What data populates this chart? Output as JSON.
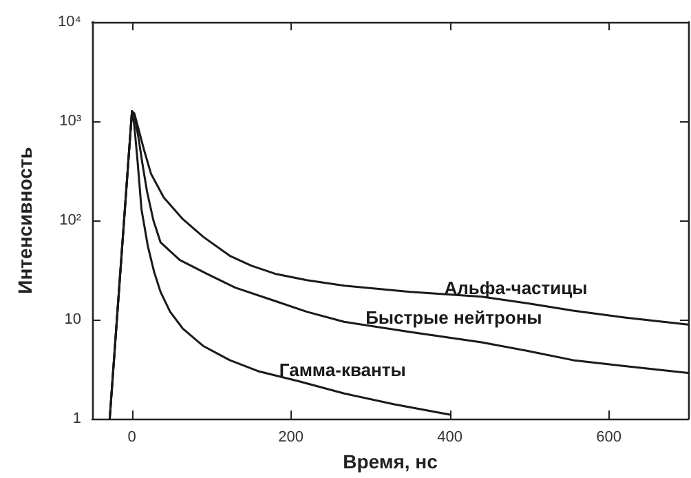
{
  "chart_data": {
    "type": "line",
    "xlabel": "Время, нс",
    "ylabel": "Интенсивность",
    "log": "y",
    "grid": false,
    "legend": false,
    "marker": "none",
    "line_style": "solid",
    "xlim": [
      -50,
      700
    ],
    "xticks": [
      0,
      200,
      400,
      600
    ],
    "ylim": [
      1,
      10000
    ],
    "yticks": [
      1,
      10,
      {
        "value": 100,
        "label": "10²"
      },
      {
        "value": 1000,
        "label": "10³"
      },
      {
        "value": 10000,
        "label": "10⁴"
      }
    ],
    "series": [
      {
        "name": "Альфа-частицы",
        "color": "#1a1a1a",
        "x": [
          -28,
          0,
          3,
          8,
          15,
          24,
          40,
          64,
          90,
          123,
          150,
          180,
          220,
          267,
          350,
          440,
          500,
          555,
          620,
          700
        ],
        "values": [
          1,
          1260,
          1200,
          850,
          520,
          295,
          170,
          103,
          68,
          44,
          35,
          29,
          25,
          22,
          19,
          17,
          14.5,
          12.3,
          10.5,
          8.9
        ]
      },
      {
        "name": "Быстрые нейтроны",
        "color": "#1a1a1a",
        "x": [
          -28,
          0,
          3,
          8,
          13,
          19,
          27,
          36,
          60,
          94,
          130,
          180,
          220,
          267,
          350,
          440,
          500,
          555,
          620,
          700
        ],
        "values": [
          1,
          1260,
          1150,
          700,
          380,
          195,
          100,
          60,
          40,
          29,
          21,
          15.4,
          12,
          9.5,
          7.5,
          5.9,
          4.8,
          3.9,
          3.4,
          2.9
        ]
      },
      {
        "name": "Гамма-кванты",
        "color": "#1a1a1a",
        "x": [
          -28,
          0,
          3,
          7,
          12,
          20,
          28,
          36,
          48,
          64,
          90,
          123,
          160,
          209,
          267,
          330,
          400
        ],
        "values": [
          1,
          1260,
          900,
          400,
          129,
          55,
          30,
          19,
          12,
          8.1,
          5.4,
          3.9,
          3,
          2.4,
          1.8,
          1.4,
          1.1
        ]
      }
    ]
  }
}
